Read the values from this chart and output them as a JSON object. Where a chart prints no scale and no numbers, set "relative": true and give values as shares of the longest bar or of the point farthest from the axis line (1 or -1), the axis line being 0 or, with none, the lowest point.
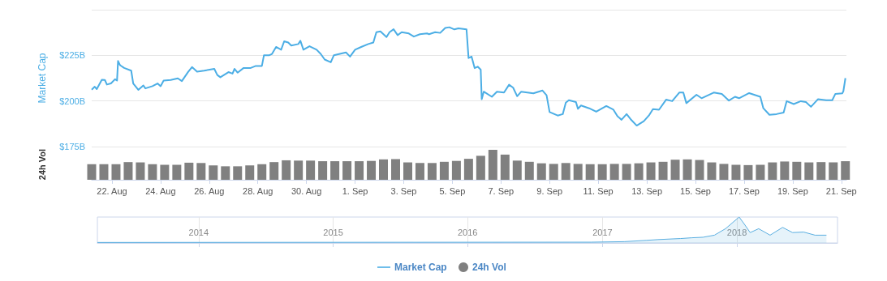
{
  "chart_data": [
    {
      "type": "line",
      "ylabel": "Market Cap",
      "xlim": [
        "2018-08-21T04:00",
        "2018-09-21T05:00"
      ],
      "ylim": [
        175,
        250
      ],
      "yticks": [
        {
          "value": 175,
          "label": "$175B"
        },
        {
          "value": 200,
          "label": "$200B"
        },
        {
          "value": 225,
          "label": "$225B"
        },
        {
          "value": 250,
          "label": null
        }
      ],
      "grid": "y",
      "tick_labels": "y",
      "legend": "bottom",
      "series": [
        {
          "name": "Market Cap",
          "color": "#4caee5",
          "x": [
            "2018-08-21T04:00",
            "2018-08-21T07:00",
            "2018-08-21T09:00",
            "2018-08-21T14:00",
            "2018-08-21T17:00",
            "2018-08-21T19:00",
            "2018-08-21T23:00",
            "2018-08-22T03:00",
            "2018-08-22T05:00",
            "2018-08-22T06:00",
            "2018-08-22T08:00",
            "2018-08-22T12:00",
            "2018-08-22T19:00",
            "2018-08-22T21:00",
            "2018-08-23T02:00",
            "2018-08-23T07:00",
            "2018-08-23T09:00",
            "2018-08-23T16:00",
            "2018-08-23T21:00",
            "2018-08-24T00:00",
            "2018-08-24T03:00",
            "2018-08-24T10:00",
            "2018-08-24T17:00",
            "2018-08-24T21:00",
            "2018-08-25T03:00",
            "2018-08-25T07:00",
            "2018-08-25T12:00",
            "2018-08-25T19:00",
            "2018-08-26T05:00",
            "2018-08-26T08:00",
            "2018-08-26T11:00",
            "2018-08-26T19:00",
            "2018-08-26T23:00",
            "2018-08-27T01:00",
            "2018-08-27T04:00",
            "2018-08-27T10:00",
            "2018-08-27T17:00",
            "2018-08-27T22:00",
            "2018-08-28T04:00",
            "2018-08-28T06:00",
            "2018-08-28T11:00",
            "2018-08-28T14:00",
            "2018-08-28T18:00",
            "2018-08-28T23:00",
            "2018-08-29T02:00",
            "2018-08-29T06:00",
            "2018-08-29T09:00",
            "2018-08-29T16:00",
            "2018-08-29T18:00",
            "2018-08-29T21:00",
            "2018-08-30T03:00",
            "2018-08-30T10:00",
            "2018-08-30T14:00",
            "2018-08-30T18:00",
            "2018-08-31T00:00",
            "2018-08-31T03:00",
            "2018-08-31T09:00",
            "2018-08-31T15:00",
            "2018-08-31T19:00",
            "2018-09-01T00:00",
            "2018-09-01T06:00",
            "2018-09-01T13:00",
            "2018-09-01T18:00",
            "2018-09-01T21:00",
            "2018-09-02T01:00",
            "2018-09-02T07:00",
            "2018-09-02T10:00",
            "2018-09-02T14:00",
            "2018-09-02T18:00",
            "2018-09-02T22:00",
            "2018-09-03T05:00",
            "2018-09-03T10:00",
            "2018-09-03T16:00",
            "2018-09-03T23:00",
            "2018-09-04T01:00",
            "2018-09-04T07:00",
            "2018-09-04T12:00",
            "2018-09-04T17:00",
            "2018-09-04T21:00",
            "2018-09-05T02:00",
            "2018-09-05T06:00",
            "2018-09-05T14:00",
            "2018-09-05T16:00",
            "2018-09-05T19:00",
            "2018-09-05T22:00",
            "2018-09-06T01:00",
            "2018-09-06T04:00",
            "2018-09-06T05:00",
            "2018-09-06T07:00",
            "2018-09-06T15:00",
            "2018-09-06T20:00",
            "2018-09-07T03:00",
            "2018-09-07T08:00",
            "2018-09-07T12:00",
            "2018-09-07T16:00",
            "2018-09-07T20:00",
            "2018-09-08T08:00",
            "2018-09-08T17:00",
            "2018-09-08T21:00",
            "2018-09-09T00:00",
            "2018-09-09T08:00",
            "2018-09-09T13:00",
            "2018-09-09T16:00",
            "2018-09-09T19:00",
            "2018-09-10T02:00",
            "2018-09-10T04:00",
            "2018-09-10T07:00",
            "2018-09-10T15:00",
            "2018-09-10T22:00",
            "2018-09-11T08:00",
            "2018-09-11T15:00",
            "2018-09-11T19:00",
            "2018-09-11T23:00",
            "2018-09-12T04:00",
            "2018-09-12T08:00",
            "2018-09-12T14:00",
            "2018-09-12T21:00",
            "2018-09-13T02:00",
            "2018-09-13T06:00",
            "2018-09-13T12:00",
            "2018-09-13T19:00",
            "2018-09-14T01:00",
            "2018-09-14T08:00",
            "2018-09-14T12:00",
            "2018-09-14T15:00",
            "2018-09-15T01:00",
            "2018-09-15T06:00",
            "2018-09-15T18:00",
            "2018-09-16T02:00",
            "2018-09-16T09:00",
            "2018-09-16T15:00",
            "2018-09-16T19:00",
            "2018-09-17T05:00",
            "2018-09-17T16:00",
            "2018-09-17T19:00",
            "2018-09-18T01:00",
            "2018-09-18T08:00",
            "2018-09-18T15:00",
            "2018-09-18T18:00",
            "2018-09-19T01:00",
            "2018-09-19T08:00",
            "2018-09-19T13:00",
            "2018-09-19T18:00",
            "2018-09-20T01:00",
            "2018-09-20T09:00",
            "2018-09-20T15:00",
            "2018-09-20T18:00",
            "2018-09-21T01:00",
            "2018-09-21T02:00",
            "2018-09-21T04:00"
          ],
          "values": [
            206.2,
            207.8,
            206.5,
            211.6,
            211.5,
            209.0,
            209.6,
            211.9,
            211.2,
            221.9,
            219.6,
            218.1,
            216.6,
            209.6,
            206.1,
            208.5,
            206.9,
            208.1,
            209.6,
            208.1,
            211.2,
            211.5,
            212.4,
            210.9,
            215.8,
            218.6,
            216.1,
            216.6,
            217.6,
            214.2,
            213.0,
            215.8,
            215.0,
            217.6,
            215.5,
            218.1,
            218.1,
            219.2,
            219.2,
            225.0,
            225.0,
            225.8,
            229.6,
            228.1,
            232.7,
            232.0,
            230.4,
            231.2,
            233.0,
            228.1,
            230.0,
            228.1,
            225.8,
            222.7,
            221.2,
            225.0,
            225.8,
            226.6,
            224.3,
            228.1,
            229.6,
            231.2,
            232.0,
            237.7,
            238.1,
            235.0,
            237.7,
            239.3,
            236.1,
            237.7,
            237.0,
            235.3,
            236.6,
            237.0,
            236.6,
            237.7,
            237.3,
            240.0,
            240.4,
            239.2,
            239.8,
            239.2,
            223.5,
            224.3,
            218.0,
            218.8,
            217.2,
            201.0,
            205.1,
            202.3,
            205.1,
            204.6,
            208.9,
            207.3,
            202.6,
            205.1,
            204.2,
            205.7,
            203.1,
            193.9,
            192.0,
            192.8,
            199.1,
            200.4,
            199.4,
            195.7,
            197.5,
            196.0,
            194.1,
            197.2,
            195.2,
            191.6,
            189.7,
            192.8,
            190.0,
            186.5,
            188.9,
            192.0,
            195.5,
            195.2,
            200.7,
            199.9,
            204.6,
            204.6,
            198.8,
            203.4,
            201.5,
            204.6,
            203.8,
            200.2,
            202.3,
            201.5,
            204.3,
            202.3,
            196.0,
            192.4,
            192.8,
            193.6,
            199.9,
            198.3,
            199.9,
            199.4,
            196.8,
            201.0,
            200.4,
            200.4,
            203.8,
            204.2,
            205.4,
            212.5
          ]
        }
      ]
    },
    {
      "type": "bar",
      "relative": true,
      "ylabel": "24h Vol",
      "xlim": [
        "2018-08-21T04:00",
        "2018-09-21T05:00"
      ],
      "xticks": [
        {
          "value": "2018-08-22",
          "label": "22. Aug"
        },
        {
          "value": "2018-08-24",
          "label": "24. Aug"
        },
        {
          "value": "2018-08-26",
          "label": "26. Aug"
        },
        {
          "value": "2018-08-28",
          "label": "28. Aug"
        },
        {
          "value": "2018-08-30",
          "label": "30. Aug"
        },
        {
          "value": "2018-09-01",
          "label": "1. Sep"
        },
        {
          "value": "2018-09-03",
          "label": "3. Sep"
        },
        {
          "value": "2018-09-05",
          "label": "5. Sep"
        },
        {
          "value": "2018-09-07",
          "label": "7. Sep"
        },
        {
          "value": "2018-09-09",
          "label": "9. Sep"
        },
        {
          "value": "2018-09-11",
          "label": "11. Sep"
        },
        {
          "value": "2018-09-13",
          "label": "13. Sep"
        },
        {
          "value": "2018-09-15",
          "label": "15. Sep"
        },
        {
          "value": "2018-09-17",
          "label": "17. Sep"
        },
        {
          "value": "2018-09-19",
          "label": "19. Sep"
        },
        {
          "value": "2018-09-21",
          "label": "21. Sep"
        }
      ],
      "tick_labels": "x",
      "legend": "bottom",
      "series": [
        {
          "name": "24h Vol",
          "color": "#808080",
          "x": [
            "2018-08-21T04:00",
            "2018-08-21T16:00",
            "2018-08-22T04:00",
            "2018-08-22T16:00",
            "2018-08-23T04:00",
            "2018-08-23T16:00",
            "2018-08-24T04:00",
            "2018-08-24T16:00",
            "2018-08-25T04:00",
            "2018-08-25T16:00",
            "2018-08-26T04:00",
            "2018-08-26T16:00",
            "2018-08-27T04:00",
            "2018-08-27T16:00",
            "2018-08-28T04:00",
            "2018-08-28T16:00",
            "2018-08-29T04:00",
            "2018-08-29T16:00",
            "2018-08-30T04:00",
            "2018-08-30T16:00",
            "2018-08-31T04:00",
            "2018-08-31T16:00",
            "2018-09-01T04:00",
            "2018-09-01T16:00",
            "2018-09-02T04:00",
            "2018-09-02T16:00",
            "2018-09-03T04:00",
            "2018-09-03T16:00",
            "2018-09-04T04:00",
            "2018-09-04T16:00",
            "2018-09-05T04:00",
            "2018-09-05T16:00",
            "2018-09-06T04:00",
            "2018-09-06T16:00",
            "2018-09-07T04:00",
            "2018-09-07T16:00",
            "2018-09-08T04:00",
            "2018-09-08T16:00",
            "2018-09-09T04:00",
            "2018-09-09T16:00",
            "2018-09-10T04:00",
            "2018-09-10T16:00",
            "2018-09-11T04:00",
            "2018-09-11T16:00",
            "2018-09-12T04:00",
            "2018-09-12T16:00",
            "2018-09-13T04:00",
            "2018-09-13T16:00",
            "2018-09-14T04:00",
            "2018-09-14T16:00",
            "2018-09-15T04:00",
            "2018-09-15T16:00",
            "2018-09-16T04:00",
            "2018-09-16T16:00",
            "2018-09-17T04:00",
            "2018-09-17T16:00",
            "2018-09-18T04:00",
            "2018-09-18T16:00",
            "2018-09-19T04:00",
            "2018-09-19T16:00",
            "2018-09-20T04:00",
            "2018-09-20T16:00",
            "2018-09-21T04:00"
          ],
          "values": [
            0.52,
            0.52,
            0.52,
            0.59,
            0.58,
            0.52,
            0.5,
            0.5,
            0.57,
            0.56,
            0.48,
            0.45,
            0.45,
            0.48,
            0.52,
            0.59,
            0.65,
            0.64,
            0.64,
            0.62,
            0.62,
            0.62,
            0.62,
            0.63,
            0.68,
            0.69,
            0.58,
            0.56,
            0.56,
            0.6,
            0.63,
            0.7,
            0.8,
            1,
            0.84,
            0.64,
            0.6,
            0.55,
            0.53,
            0.56,
            0.53,
            0.52,
            0.52,
            0.53,
            0.53,
            0.55,
            0.58,
            0.6,
            0.67,
            0.68,
            0.66,
            0.58,
            0.53,
            0.5,
            0.49,
            0.5,
            0.58,
            0.61,
            0.6,
            0.58,
            0.59,
            0.58,
            0.62
          ]
        }
      ]
    },
    {
      "type": "area",
      "relative": true,
      "xlim": [
        "2013-04",
        "2018-10"
      ],
      "xticks": [
        "2014",
        "2015",
        "2016",
        "2017",
        "2018"
      ],
      "grid": "x",
      "series": [
        {
          "color": "#5aaee0",
          "x": [
            "2013-04",
            "2016-12",
            "2017-03",
            "2017-05",
            "2017-06",
            "2017-08",
            "2017-09",
            "2017-10",
            "2017-11",
            "2017-12",
            "2018-01-07",
            "2018-01-20",
            "2018-02-06",
            "2018-03",
            "2018-04-01",
            "2018-05-05",
            "2018-06",
            "2018-07",
            "2018-08",
            "2018-09"
          ],
          "values": [
            0.02,
            0.03,
            0.05,
            0.1,
            0.13,
            0.17,
            0.2,
            0.22,
            0.3,
            0.55,
            1,
            0.75,
            0.4,
            0.55,
            0.3,
            0.6,
            0.4,
            0.42,
            0.3,
            0.3
          ]
        }
      ]
    }
  ]
}
